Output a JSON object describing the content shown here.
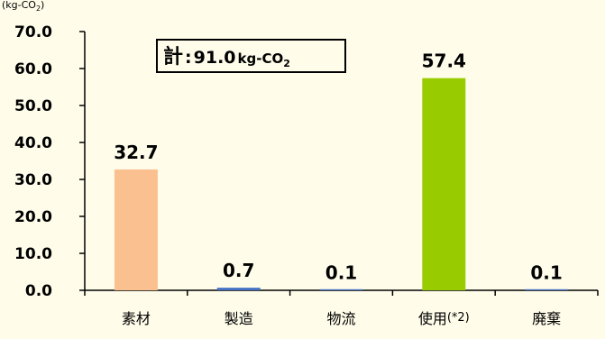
{
  "chart_data": {
    "type": "bar",
    "unit_label": "(kg-CO",
    "unit_label_sub": "2",
    "unit_label_end": ")",
    "categories": [
      "素材",
      "製造",
      "物流",
      "使用",
      "廃棄"
    ],
    "category_suffixes": [
      "",
      "",
      "",
      "(*2)",
      ""
    ],
    "values": [
      32.7,
      0.7,
      0.1,
      57.4,
      0.1
    ],
    "data_labels": [
      "32.7",
      "0.7",
      "0.1",
      "57.4",
      "0.1"
    ],
    "colors": [
      "#fac090",
      "#4472c4",
      "#4472c4",
      "#99cc00",
      "#4472c4"
    ],
    "ylim": [
      0,
      70
    ],
    "yticks": [
      "0.0",
      "10.0",
      "20.0",
      "30.0",
      "40.0",
      "50.0",
      "60.0",
      "70.0"
    ],
    "grid": false,
    "total": {
      "prefix": "計",
      "colon": ":",
      "value": "91.0",
      "unit": "kg-CO",
      "unit_sub": "2"
    }
  }
}
